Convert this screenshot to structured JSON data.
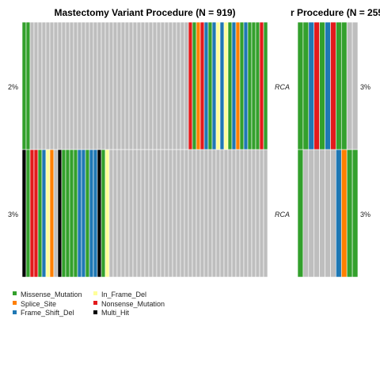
{
  "chart_data": [
    {
      "type": "heatmap",
      "title": "Mastectomy Variant Procedure (N = 919)",
      "rows": [
        {
          "label": "2%",
          "cells": [
            "M",
            "M",
            "N",
            "N",
            "N",
            "N",
            "N",
            "N",
            "N",
            "N",
            "N",
            "N",
            "N",
            "N",
            "N",
            "N",
            "N",
            "N",
            "N",
            "N",
            "N",
            "N",
            "N",
            "N",
            "N",
            "N",
            "N",
            "N",
            "N",
            "N",
            "N",
            "N",
            "N",
            "N",
            "N",
            "N",
            "N",
            "N",
            "N",
            "N",
            "N",
            "N",
            "NS",
            "M",
            "S",
            "NS",
            "F",
            "M",
            "F",
            "I",
            "F",
            "I",
            "M",
            "F",
            "S",
            "M",
            "F",
            "M",
            "M",
            "M",
            "NS",
            "M"
          ]
        },
        {
          "label": "3%",
          "cells": [
            "H",
            "M",
            "NS",
            "NS",
            "M",
            "F",
            "I",
            "S",
            "N",
            "H",
            "M",
            "M",
            "M",
            "M",
            "F",
            "F",
            "M",
            "F",
            "F",
            "H",
            "M",
            "I",
            "N",
            "N",
            "N",
            "N",
            "N",
            "N",
            "N",
            "N",
            "N",
            "N",
            "N",
            "N",
            "N",
            "N",
            "N",
            "N",
            "N",
            "N",
            "N",
            "N",
            "N",
            "N",
            "N",
            "N",
            "N",
            "N",
            "N",
            "N",
            "N",
            "N",
            "N",
            "N",
            "N",
            "N",
            "N",
            "N",
            "N",
            "N",
            "N",
            "N"
          ]
        }
      ]
    },
    {
      "type": "heatmap",
      "title": "r Procedure (N = 255",
      "rows": [
        {
          "label": "RCA",
          "pct": "3%",
          "cells": [
            "M",
            "M",
            "F",
            "NS",
            "M",
            "F",
            "NS",
            "M",
            "M",
            "N",
            "N"
          ]
        },
        {
          "label": "RCA",
          "pct": "3%",
          "cells": [
            "M",
            "N",
            "N",
            "N",
            "N",
            "N",
            "N",
            "F",
            "S",
            "M",
            "M"
          ]
        }
      ]
    }
  ],
  "legend": [
    {
      "key": "M",
      "label": "Missense_Mutation",
      "color": "#33a02c"
    },
    {
      "key": "S",
      "label": "Splice_Site",
      "color": "#ff7f00"
    },
    {
      "key": "F",
      "label": "Frame_Shift_Del",
      "color": "#1f78b4"
    },
    {
      "key": "I",
      "label": "In_Frame_Del",
      "color": "#ffff99"
    },
    {
      "key": "NS",
      "label": "Nonsense_Mutation",
      "color": "#e31a1c"
    },
    {
      "key": "H",
      "label": "Multi_Hit",
      "color": "#000000"
    }
  ],
  "colors": {
    "N": "#bebebe",
    "cell_border": "#ffffff"
  }
}
